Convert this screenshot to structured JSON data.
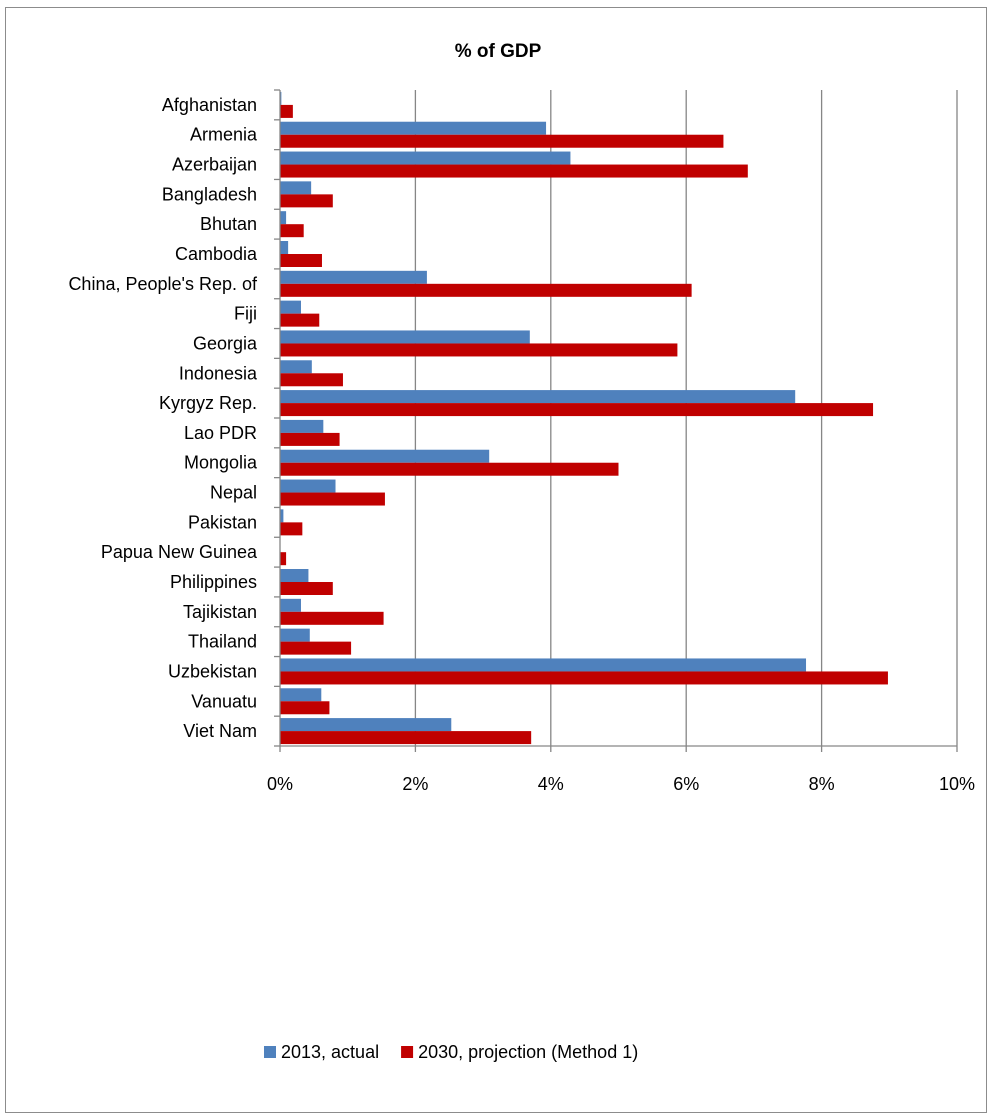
{
  "chart_data": {
    "type": "bar",
    "orientation": "horizontal",
    "title": "% of GDP",
    "xlabel": "",
    "ylabel": "",
    "xlim": [
      0,
      10
    ],
    "tick_values": [
      0,
      2,
      4,
      6,
      8,
      10
    ],
    "tick_labels": [
      "0%",
      "2%",
      "4%",
      "6%",
      "8%",
      "10%"
    ],
    "grid": "vertical major gridlines",
    "legend_position": "bottom",
    "categories": [
      "Afghanistan",
      "Armenia",
      "Azerbaijan",
      "Bangladesh",
      "Bhutan",
      "Cambodia",
      "China, People's Rep. of",
      "Fiji",
      "Georgia",
      "Indonesia",
      "Kyrgyz Rep.",
      "Lao PDR",
      "Mongolia",
      "Nepal",
      "Pakistan",
      "Papua New Guinea",
      "Philippines",
      "Tajikistan",
      "Thailand",
      "Uzbekistan",
      "Vanuatu",
      "Viet Nam"
    ],
    "series": [
      {
        "name": "2013, actual",
        "color": "#4f81bd",
        "values": [
          0.02,
          3.93,
          4.29,
          0.46,
          0.09,
          0.12,
          2.17,
          0.31,
          3.69,
          0.47,
          7.61,
          0.64,
          3.09,
          0.82,
          0.05,
          0.0,
          0.42,
          0.31,
          0.44,
          7.77,
          0.61,
          2.53
        ]
      },
      {
        "name": "2030, projection (Method 1)",
        "color": "#c00000",
        "values": [
          0.19,
          6.55,
          6.91,
          0.78,
          0.35,
          0.62,
          6.08,
          0.58,
          5.87,
          0.93,
          8.76,
          0.88,
          5.0,
          1.55,
          0.33,
          0.09,
          0.78,
          1.53,
          1.05,
          8.98,
          0.73,
          3.71
        ]
      }
    ]
  }
}
